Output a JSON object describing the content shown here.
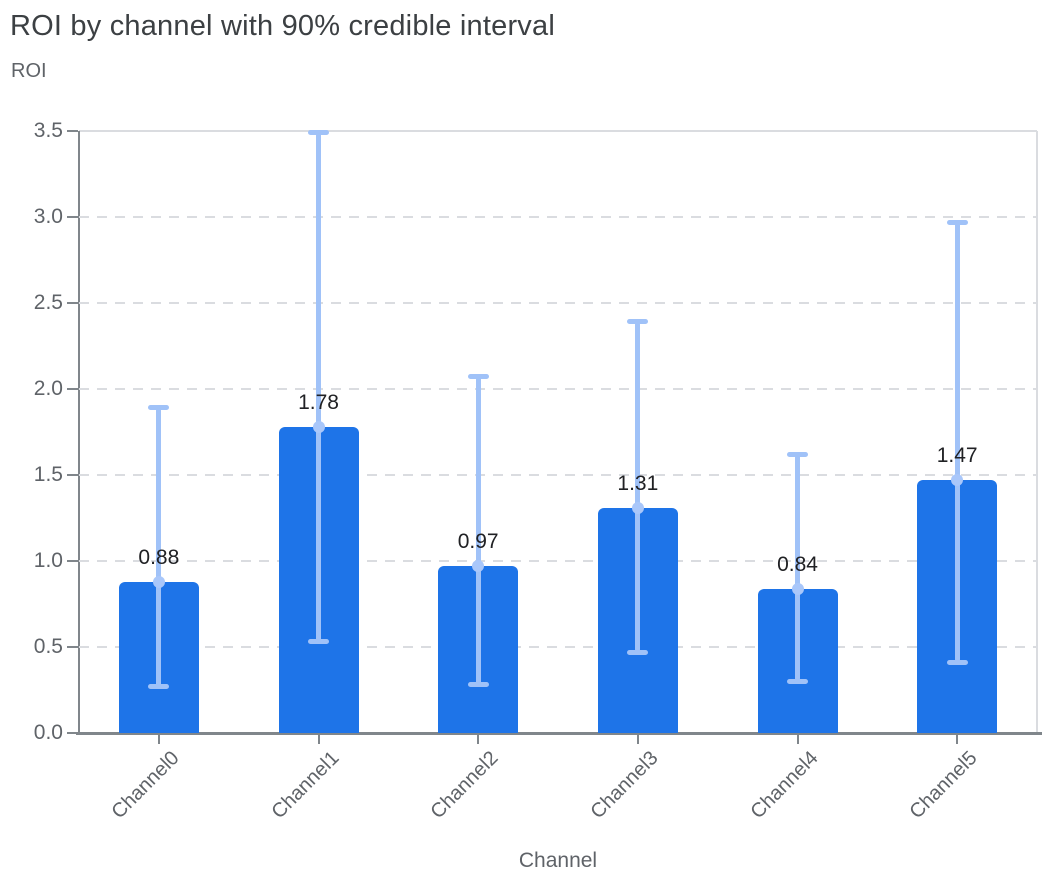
{
  "chart_data": {
    "type": "bar",
    "title": "ROI by channel with 90% credible interval",
    "ylabel": "ROI",
    "xlabel": "Channel",
    "categories": [
      "Channel0",
      "Channel1",
      "Channel2",
      "Channel3",
      "Channel4",
      "Channel5"
    ],
    "series": [
      {
        "name": "ROI",
        "values": [
          0.88,
          1.78,
          0.97,
          1.31,
          0.84,
          1.47
        ]
      }
    ],
    "bar_value_labels": [
      "0.88",
      "1.78",
      "0.97",
      "1.31",
      "0.84",
      "1.47"
    ],
    "error_bars": {
      "label": "90% credible interval",
      "lower": [
        0.27,
        0.53,
        0.28,
        0.47,
        0.3,
        0.41
      ],
      "upper": [
        1.89,
        3.49,
        2.07,
        2.39,
        1.62,
        2.97
      ]
    },
    "ylim": [
      0,
      3.5
    ],
    "yticks": [
      0,
      0.5,
      1,
      1.5,
      2,
      2.5,
      3,
      3.5
    ],
    "ytick_labels": [
      "0.0",
      "0.5",
      "1.0",
      "1.5",
      "2.0",
      "2.5",
      "3.0",
      "3.5"
    ],
    "grid": "horizontal-dashed",
    "legend": "none",
    "colors": {
      "bar": "#1e74e8",
      "error_bar": "#a0c2f8",
      "error_dot": "#a9c7fa",
      "grid": "#dadce0",
      "plot_border": "#dadce0",
      "axis": "#80868b",
      "title": "#3c4043",
      "axis_label": "#5f6368",
      "value_label": "#202124"
    }
  }
}
